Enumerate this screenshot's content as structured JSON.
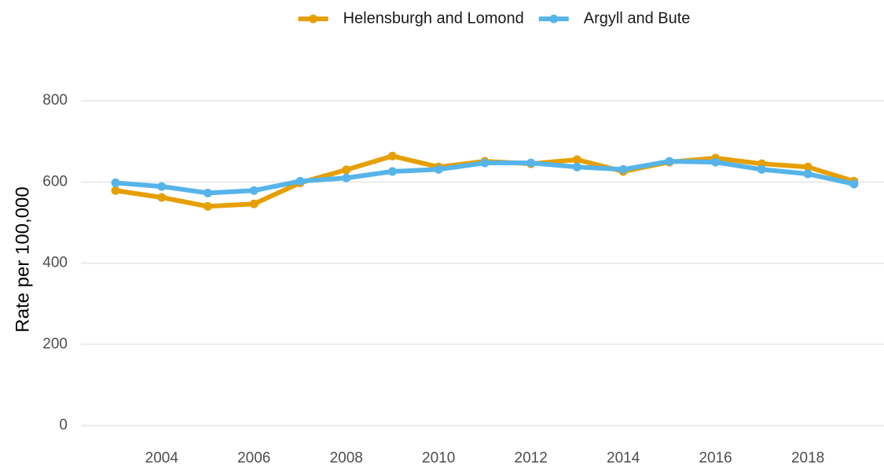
{
  "chart_data": {
    "type": "line",
    "x": [
      2003,
      2004,
      2005,
      2006,
      2007,
      2008,
      2009,
      2010,
      2011,
      2012,
      2013,
      2014,
      2015,
      2016,
      2017,
      2018,
      2019
    ],
    "series": [
      {
        "name": "Helensburgh and Lomond",
        "color": "#E69F00",
        "values": [
          579,
          562,
          540,
          546,
          598,
          630,
          664,
          637,
          651,
          645,
          655,
          626,
          649,
          659,
          645,
          637,
          602
        ]
      },
      {
        "name": "Argyll and Bute",
        "color": "#56B4E9",
        "values": [
          598,
          589,
          573,
          579,
          602,
          610,
          626,
          631,
          647,
          647,
          637,
          631,
          651,
          649,
          631,
          620,
          595
        ]
      }
    ],
    "ylabel": "Rate per 100,000",
    "xlim": [
      2002.25,
      2019.65
    ],
    "xticks": [
      2004,
      2006,
      2008,
      2010,
      2012,
      2014,
      2016,
      2018
    ],
    "ylim": [
      -35,
      845
    ],
    "yticks": [
      0,
      200,
      400,
      600,
      800
    ],
    "grid": true,
    "legend": "top"
  }
}
